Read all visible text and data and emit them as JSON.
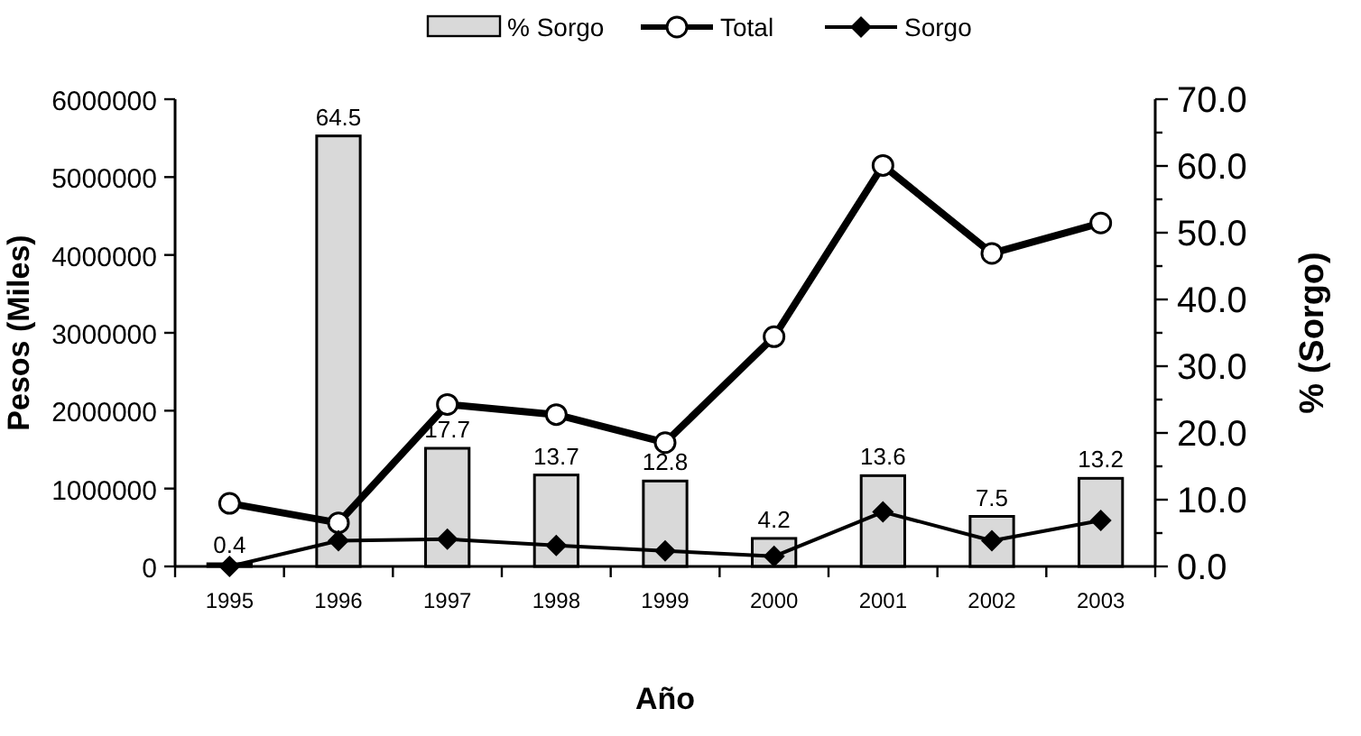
{
  "chart_data": {
    "type": "bar",
    "xlabel": "Año",
    "ylabel": "Pesos (Miles)",
    "y2label": "% (Sorgo)",
    "categories": [
      "1995",
      "1996",
      "1997",
      "1998",
      "1999",
      "2000",
      "2001",
      "2002",
      "2003"
    ],
    "series": [
      {
        "name": "% Sorgo",
        "axis": "y2",
        "color": "#d9d9d9",
        "values": [
          0.4,
          64.5,
          17.7,
          13.7,
          12.8,
          4.2,
          13.6,
          7.5,
          13.2
        ],
        "value_labels": [
          "0.4",
          "64.5",
          "17.7",
          "13.7",
          "12.8",
          "4.2",
          "13.6",
          "7.5",
          "13.2"
        ]
      },
      {
        "name": "Total",
        "type": "line",
        "color": "#000000",
        "marker": "circle",
        "values": [
          810000,
          560000,
          2080000,
          1950000,
          1590000,
          2950000,
          5150000,
          4020000,
          4410000
        ]
      },
      {
        "name": "Sorgo",
        "type": "line",
        "color": "#000000",
        "marker": "diamond",
        "values": [
          0,
          330000,
          350000,
          270000,
          200000,
          130000,
          700000,
          330000,
          590000
        ]
      }
    ],
    "ylim": [
      0,
      6000000
    ],
    "yticks": [
      0,
      1000000,
      2000000,
      3000000,
      4000000,
      5000000,
      6000000
    ],
    "y2lim": [
      0,
      70
    ],
    "y2ticks": [
      {
        "value": 0,
        "label": "0.0"
      },
      {
        "value": 5,
        "label": null
      },
      {
        "value": 10,
        "label": "10.0"
      },
      {
        "value": 15,
        "label": null
      },
      {
        "value": 20,
        "label": "20.0"
      },
      {
        "value": 25,
        "label": null
      },
      {
        "value": 30,
        "label": "30.0"
      },
      {
        "value": 35,
        "label": null
      },
      {
        "value": 40,
        "label": "40.0"
      },
      {
        "value": 45,
        "label": null
      },
      {
        "value": 50,
        "label": "50.0"
      },
      {
        "value": 55,
        "label": null
      },
      {
        "value": 60,
        "label": "60.0"
      },
      {
        "value": 65,
        "label": null
      },
      {
        "value": 70,
        "label": "70.0"
      }
    ],
    "legend": "top",
    "grid": false
  }
}
